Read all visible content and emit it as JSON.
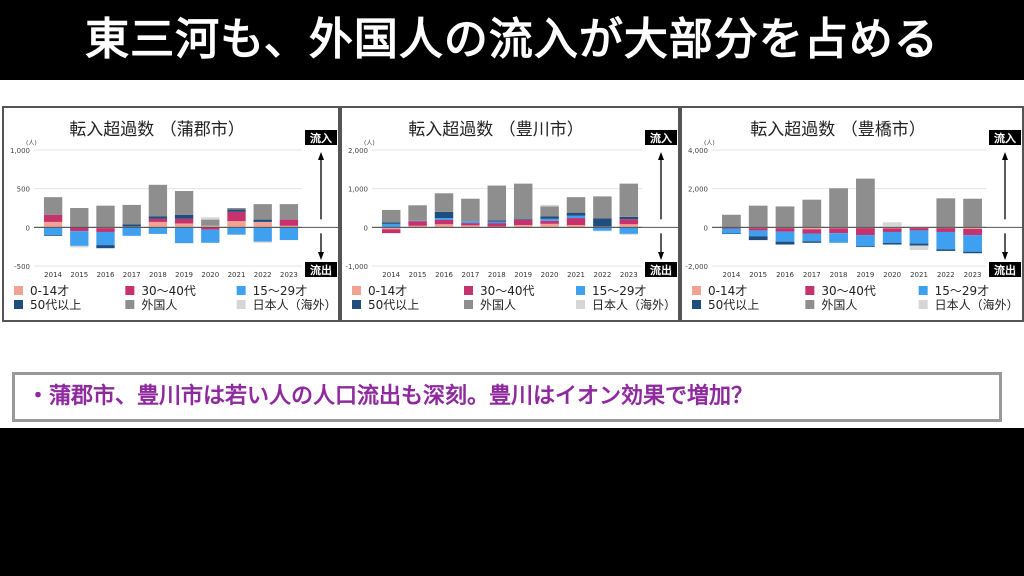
{
  "slide": {
    "title": "東三河も、外国人の流入が大部分を占める",
    "note": "・蒲郡市、豊川市は若い人の人口流出も深刻。豊川はイオン効果で増加？"
  },
  "legend": {
    "inflow_label": "流入",
    "outflow_label": "流出",
    "unit": "(人)"
  },
  "series_colors": {
    "age_0_14": "#f2a293",
    "age_30_40s": "#c5326e",
    "age_15_29": "#40a0f0",
    "age_50_plus": "#1e4d7e",
    "foreign": "#8e8e8e",
    "japanese_overseas": "#d6d6d6"
  },
  "chart_data": [
    {
      "type": "bar",
      "stacked": true,
      "title": "転入超過数 （蒲郡市）",
      "ylabel": "(人)",
      "ylim": [
        -500,
        1000
      ],
      "yticks": [
        "1,000",
        "500",
        "0",
        "-500"
      ],
      "ytick_values": [
        1000,
        500,
        0,
        -500
      ],
      "categories": [
        "2014",
        "2015",
        "2016",
        "2017",
        "2018",
        "2019",
        "2020",
        "2021",
        "2022",
        "2023"
      ],
      "series": [
        {
          "name": "0-14才",
          "key": "age_0_14",
          "values": [
            70,
            0,
            -10,
            10,
            70,
            50,
            20,
            80,
            70,
            20
          ]
        },
        {
          "name": "30〜40代",
          "key": "age_30_40s",
          "values": [
            90,
            -50,
            -50,
            0,
            40,
            60,
            -30,
            120,
            0,
            80
          ]
        },
        {
          "name": "15〜29才",
          "key": "age_15_29",
          "values": [
            -100,
            -190,
            -170,
            -110,
            -85,
            -205,
            -170,
            -95,
            -185,
            -165
          ]
        },
        {
          "name": "50代以上",
          "key": "age_50_plus",
          "values": [
            -10,
            0,
            -40,
            30,
            30,
            50,
            0,
            30,
            30,
            0
          ]
        },
        {
          "name": "外国人",
          "key": "foreign",
          "values": [
            230,
            250,
            280,
            250,
            410,
            310,
            80,
            20,
            200,
            200
          ]
        },
        {
          "name": "日本人（海外）",
          "key": "japanese_overseas",
          "values": [
            0,
            -20,
            0,
            0,
            0,
            0,
            30,
            0,
            -15,
            0
          ]
        }
      ]
    },
    {
      "type": "bar",
      "stacked": true,
      "title": "転入超過数 （豊川市）",
      "ylabel": "(人)",
      "ylim": [
        -1000,
        2000
      ],
      "yticks": [
        "2,000",
        "1,000",
        "0",
        "-1,000"
      ],
      "ytick_values": [
        2000,
        1000,
        0,
        -1000
      ],
      "categories": [
        "2014",
        "2015",
        "2016",
        "2017",
        "2018",
        "2019",
        "2020",
        "2021",
        "2022",
        "2023"
      ],
      "series": [
        {
          "name": "0-14才",
          "key": "age_0_14",
          "values": [
            -50,
            40,
            80,
            50,
            20,
            60,
            90,
            60,
            20,
            80
          ]
        },
        {
          "name": "30〜40代",
          "key": "age_30_40s",
          "values": [
            -100,
            120,
            110,
            60,
            90,
            130,
            80,
            180,
            0,
            130
          ]
        },
        {
          "name": "15〜29才",
          "key": "age_15_29",
          "values": [
            90,
            10,
            50,
            50,
            40,
            0,
            50,
            60,
            -90,
            -170
          ]
        },
        {
          "name": "50代以上",
          "key": "age_50_plus",
          "values": [
            40,
            0,
            160,
            0,
            30,
            20,
            60,
            80,
            210,
            60
          ]
        },
        {
          "name": "外国人",
          "key": "foreign",
          "values": [
            320,
            400,
            480,
            580,
            900,
            920,
            260,
            400,
            570,
            860
          ]
        },
        {
          "name": "日本人（海外）",
          "key": "japanese_overseas",
          "values": [
            0,
            0,
            0,
            0,
            0,
            0,
            40,
            0,
            -10,
            -20
          ]
        }
      ]
    },
    {
      "type": "bar",
      "stacked": true,
      "title": "転入超過数 （豊橋市）",
      "ylabel": "(人)",
      "ylim": [
        -2000,
        4000
      ],
      "yticks": [
        "4,000",
        "2,000",
        "0",
        "-2,000"
      ],
      "ytick_values": [
        4000,
        2000,
        0,
        -2000
      ],
      "categories": [
        "2014",
        "2015",
        "2016",
        "2017",
        "2018",
        "2019",
        "2020",
        "2021",
        "2022",
        "2023"
      ],
      "series": [
        {
          "name": "0-14才",
          "key": "age_0_14",
          "values": [
            -20,
            -40,
            -40,
            -100,
            -50,
            -40,
            -60,
            -40,
            -40,
            -80
          ]
        },
        {
          "name": "30〜40代",
          "key": "age_30_40s",
          "values": [
            -40,
            -120,
            -180,
            -220,
            -250,
            -360,
            -180,
            -120,
            -200,
            -320
          ]
        },
        {
          "name": "15〜29才",
          "key": "age_15_29",
          "values": [
            -260,
            -300,
            -520,
            -400,
            -500,
            -580,
            -570,
            -680,
            -900,
            -860
          ]
        },
        {
          "name": "50代以上",
          "key": "age_50_plus",
          "values": [
            -20,
            -200,
            -150,
            -80,
            0,
            -40,
            -80,
            -100,
            -80,
            -80
          ]
        },
        {
          "name": "外国人",
          "key": "foreign",
          "values": [
            650,
            1120,
            1080,
            1430,
            2020,
            2520,
            0,
            0,
            1500,
            1480
          ]
        },
        {
          "name": "日本人（海外）",
          "key": "japanese_overseas",
          "values": [
            0,
            0,
            0,
            0,
            0,
            0,
            260,
            -230,
            0,
            0
          ]
        }
      ]
    }
  ]
}
